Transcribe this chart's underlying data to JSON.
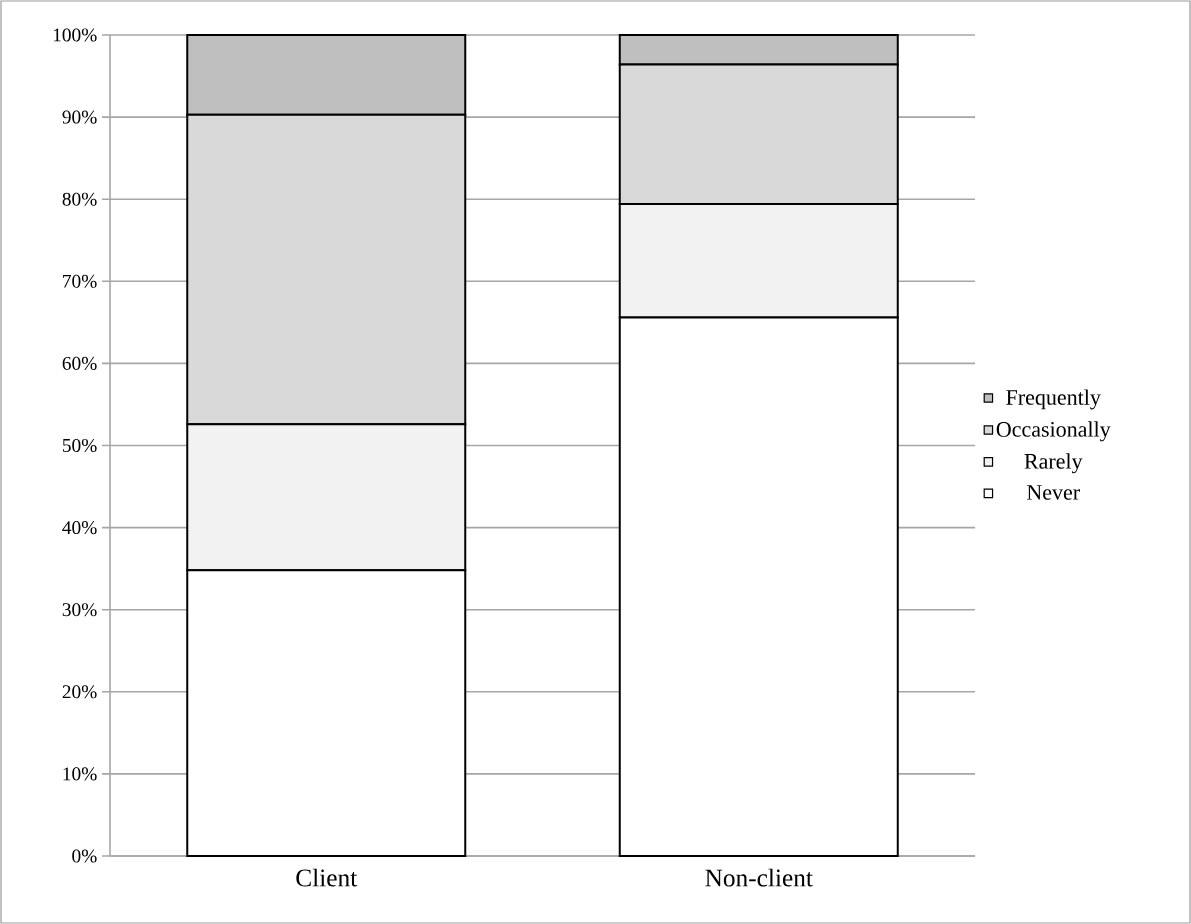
{
  "chart_data": {
    "type": "bar",
    "stacked": true,
    "categories": [
      "Client",
      "Non-client"
    ],
    "series": [
      {
        "name": "Never",
        "color": "#ffffff",
        "values": [
          34.8,
          65.6
        ]
      },
      {
        "name": "Rarely",
        "color": "#f2f2f2",
        "values": [
          17.8,
          13.8
        ]
      },
      {
        "name": "Occasionally",
        "color": "#d9d9d9",
        "values": [
          37.7,
          17.0
        ]
      },
      {
        "name": "Frequently",
        "color": "#bfbfbf",
        "values": [
          9.7,
          3.6
        ]
      }
    ],
    "ylim": [
      0,
      100
    ],
    "yticks": [
      {
        "value": 0,
        "label": "0%"
      },
      {
        "value": 10,
        "label": "10%"
      },
      {
        "value": 20,
        "label": "20%"
      },
      {
        "value": 30,
        "label": "30%"
      },
      {
        "value": 40,
        "label": "40%"
      },
      {
        "value": 50,
        "label": "50%"
      },
      {
        "value": 60,
        "label": "60%"
      },
      {
        "value": 70,
        "label": "70%"
      },
      {
        "value": 80,
        "label": "80%"
      },
      {
        "value": 90,
        "label": "90%"
      },
      {
        "value": 100,
        "label": "100%"
      }
    ],
    "grid": "y",
    "legend": "right"
  }
}
